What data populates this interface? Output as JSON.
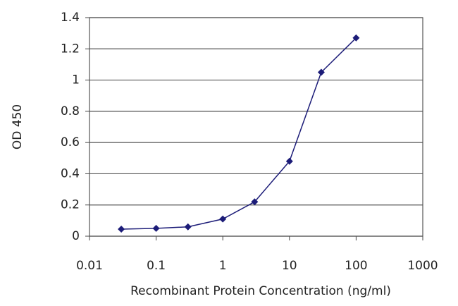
{
  "chart_data": {
    "type": "line",
    "x_label": "Recombinant Protein Concentration (ng/ml)",
    "y_label": "OD 450",
    "x": [
      0.03,
      0.1,
      0.3,
      1,
      3,
      10,
      30,
      100
    ],
    "series": [
      {
        "color": "#1c1c78",
        "values": [
          0.045,
          0.05,
          0.06,
          0.11,
          0.22,
          0.48,
          1.05,
          1.27
        ]
      }
    ],
    "xscale": "log",
    "xlim": [
      0.01,
      1000
    ],
    "xticks": [
      0.01,
      0.1,
      1,
      10,
      100,
      1000
    ],
    "ylim": [
      0,
      1.4
    ],
    "yticks": [
      0,
      0.2,
      0.4,
      0.6,
      0.8,
      1,
      1.2,
      1.4
    ],
    "grid": true
  }
}
